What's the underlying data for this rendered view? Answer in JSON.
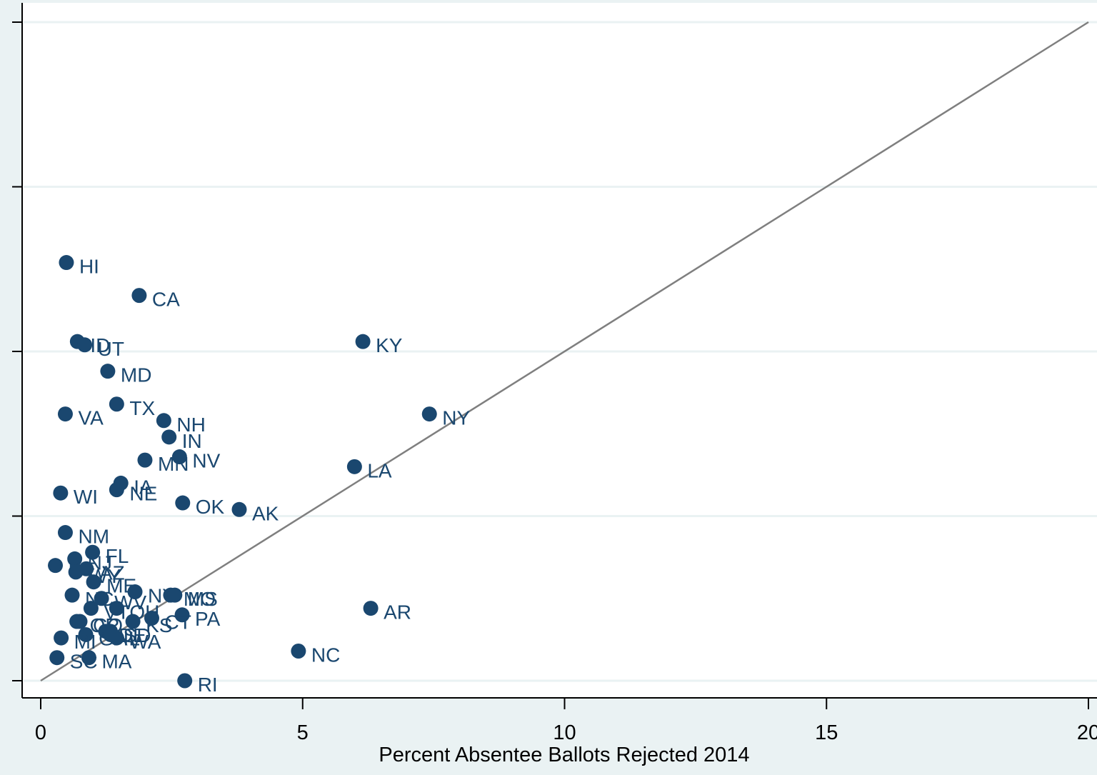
{
  "chart_data": {
    "type": "scatter",
    "title": "",
    "xlabel": "Percent Absentee Ballots Rejected 2014",
    "ylabel": "",
    "xlim": [
      0,
      20
    ],
    "ylim": [
      0,
      20
    ],
    "x_ticks": [
      0,
      5,
      10,
      15,
      20
    ],
    "x_tick_labels": [
      "0",
      "5",
      "10",
      "15",
      "20"
    ],
    "y_ticks": [
      0,
      5,
      10,
      15,
      20
    ],
    "grid": true,
    "reference_line": {
      "type": "45-degree",
      "from": [
        0,
        0
      ],
      "to": [
        20,
        20
      ],
      "color": "#7f7f7f"
    },
    "marker_color": "#1a476f",
    "label_color": "#1a476f",
    "background": "#eaf2f3",
    "plot_background": "#ffffff",
    "points": [
      {
        "label": "HI",
        "x": 0.49,
        "y": 12.7
      },
      {
        "label": "CA",
        "x": 1.88,
        "y": 11.7
      },
      {
        "label": "ID",
        "x": 0.7,
        "y": 10.3
      },
      {
        "label": "UT",
        "x": 0.84,
        "y": 10.2
      },
      {
        "label": "KY",
        "x": 6.15,
        "y": 10.3
      },
      {
        "label": "MD",
        "x": 1.28,
        "y": 9.4
      },
      {
        "label": "TX",
        "x": 1.45,
        "y": 8.4
      },
      {
        "label": "VA",
        "x": 0.47,
        "y": 8.1
      },
      {
        "label": "NY",
        "x": 7.42,
        "y": 8.1
      },
      {
        "label": "NH",
        "x": 2.35,
        "y": 7.9
      },
      {
        "label": "IN",
        "x": 2.45,
        "y": 7.4
      },
      {
        "label": "MN",
        "x": 1.99,
        "y": 6.7
      },
      {
        "label": "NV",
        "x": 2.65,
        "y": 6.8
      },
      {
        "label": "LA",
        "x": 5.99,
        "y": 6.5
      },
      {
        "label": "IA",
        "x": 1.53,
        "y": 6.0
      },
      {
        "label": "NE",
        "x": 1.45,
        "y": 5.8
      },
      {
        "label": "WI",
        "x": 0.38,
        "y": 5.7
      },
      {
        "label": "OK",
        "x": 2.71,
        "y": 5.4
      },
      {
        "label": "AK",
        "x": 3.79,
        "y": 5.2
      },
      {
        "label": "NM",
        "x": 0.47,
        "y": 4.5
      },
      {
        "label": "FL",
        "x": 0.99,
        "y": 3.9
      },
      {
        "label": "NJ",
        "x": 0.65,
        "y": 3.7
      },
      {
        "label": "DE",
        "x": 0.28,
        "y": 3.5
      },
      {
        "label": "AZ",
        "x": 0.87,
        "y": 3.4
      },
      {
        "label": "WY",
        "x": 0.67,
        "y": 3.3
      },
      {
        "label": "ME",
        "x": 1.01,
        "y": 3.0
      },
      {
        "label": "NY",
        "x": 1.8,
        "y": 2.7
      },
      {
        "label": "MO",
        "x": 2.48,
        "y": 2.6
      },
      {
        "label": "MS",
        "x": 2.56,
        "y": 2.6
      },
      {
        "label": "NC",
        "x": 0.6,
        "y": 2.6
      },
      {
        "label": "WV",
        "x": 1.16,
        "y": 2.5
      },
      {
        "label": "AR",
        "x": 6.3,
        "y": 2.2
      },
      {
        "label": "VT",
        "x": 0.96,
        "y": 2.2
      },
      {
        "label": "OH",
        "x": 1.45,
        "y": 2.2
      },
      {
        "label": "PA",
        "x": 2.7,
        "y": 2.0
      },
      {
        "label": "CT",
        "x": 2.12,
        "y": 1.9
      },
      {
        "label": "KS",
        "x": 1.76,
        "y": 1.8
      },
      {
        "label": "OR",
        "x": 0.69,
        "y": 1.8
      },
      {
        "label": "CO",
        "x": 0.75,
        "y": 1.8
      },
      {
        "label": "SD",
        "x": 1.33,
        "y": 1.5
      },
      {
        "label": "DE",
        "x": 1.24,
        "y": 1.5
      },
      {
        "label": "GA",
        "x": 0.86,
        "y": 1.4
      },
      {
        "label": "MI",
        "x": 0.39,
        "y": 1.3
      },
      {
        "label": "IL",
        "x": 1.33,
        "y": 1.4
      },
      {
        "label": "WA",
        "x": 1.45,
        "y": 1.3
      },
      {
        "label": "NC",
        "x": 4.92,
        "y": 0.9
      },
      {
        "label": "SC",
        "x": 0.31,
        "y": 0.7
      },
      {
        "label": "MA",
        "x": 0.92,
        "y": 0.7
      },
      {
        "label": "RI",
        "x": 2.75,
        "y": 0.0
      }
    ]
  }
}
